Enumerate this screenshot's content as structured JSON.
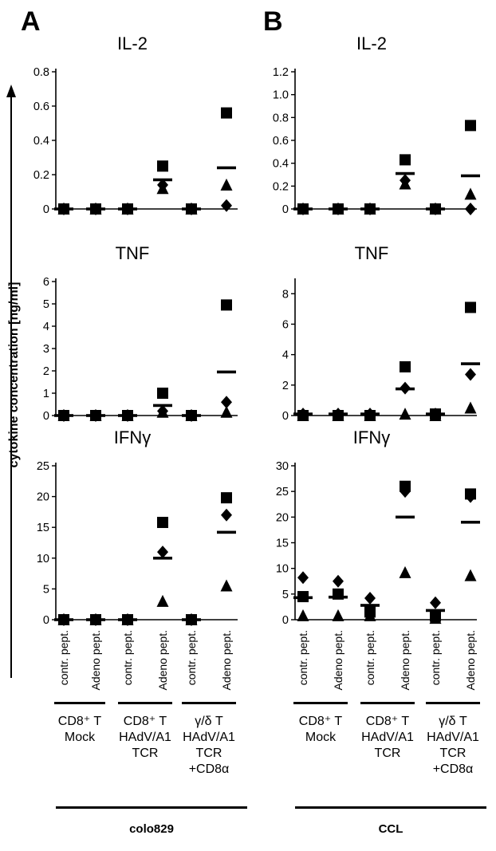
{
  "panels": [
    {
      "letter": "A",
      "cell_line": "colo829"
    },
    {
      "letter": "B",
      "cell_line": "CCL"
    }
  ],
  "y_axis_label": "cytokine concentration [ng/ml]",
  "categories": [
    "contr. pept.",
    "Adeno pept.",
    "contr. pept.",
    "Adeno pept.",
    "contr. pept.",
    "Adeno pept."
  ],
  "groups": [
    {
      "lines": [
        "CD8⁺ T",
        "Mock"
      ]
    },
    {
      "lines": [
        "CD8⁺ T",
        "HAdV/A1",
        "TCR"
      ]
    },
    {
      "lines": [
        "γ/δ T",
        "HAdV/A1",
        "TCR",
        "+CD8α"
      ]
    }
  ],
  "chart_data": [
    {
      "type": "scatter",
      "panel": "A",
      "title": "IL-2",
      "ylim": [
        0,
        0.8
      ],
      "yticks": [
        "0",
        "0.2",
        "0.4",
        "0.6",
        "0.8"
      ],
      "ytick_values": [
        0,
        0.2,
        0.4,
        0.6,
        0.8
      ],
      "series": [
        {
          "name": "",
          "marker": "square",
          "values": [
            0,
            0,
            0,
            0.25,
            0,
            0.56
          ]
        },
        {
          "name": "",
          "marker": "triangle",
          "values": [
            0,
            0,
            0,
            0.12,
            0,
            0.14
          ]
        },
        {
          "name": "",
          "marker": "diamond",
          "values": [
            0,
            0,
            0,
            0.14,
            0,
            0.02
          ]
        }
      ],
      "means": [
        0,
        0,
        0,
        0.17,
        0,
        0.24
      ]
    },
    {
      "type": "scatter",
      "panel": "A",
      "title": "TNF",
      "ylim": [
        0,
        6
      ],
      "yticks": [
        "0",
        "1",
        "2",
        "3",
        "4",
        "5",
        "6"
      ],
      "ytick_values": [
        0,
        1,
        2,
        3,
        4,
        5,
        6
      ],
      "series": [
        {
          "name": "",
          "marker": "square",
          "values": [
            0,
            0,
            0,
            1.0,
            0,
            4.95
          ]
        },
        {
          "name": "",
          "marker": "triangle",
          "values": [
            0,
            0,
            0,
            0.15,
            0,
            0.15
          ]
        },
        {
          "name": "",
          "marker": "diamond",
          "values": [
            0,
            0,
            0,
            0.2,
            0,
            0.6
          ]
        }
      ],
      "means": [
        0,
        0,
        0,
        0.45,
        0,
        1.95
      ]
    },
    {
      "type": "scatter",
      "panel": "A",
      "title": "IFNγ",
      "ylim": [
        0,
        25
      ],
      "yticks": [
        "0",
        "5",
        "10",
        "15",
        "20",
        "25"
      ],
      "ytick_values": [
        0,
        5,
        10,
        15,
        20,
        25
      ],
      "series": [
        {
          "name": "",
          "marker": "square",
          "values": [
            0,
            0,
            0,
            15.8,
            0,
            19.8
          ]
        },
        {
          "name": "",
          "marker": "triangle",
          "values": [
            0,
            0,
            0,
            3.0,
            0,
            5.5
          ]
        },
        {
          "name": "",
          "marker": "diamond",
          "values": [
            0,
            0,
            0,
            11.0,
            0,
            17.0
          ]
        }
      ],
      "means": [
        0,
        0,
        0,
        10.0,
        0,
        14.2
      ]
    },
    {
      "type": "scatter",
      "panel": "B",
      "title": "IL-2",
      "ylim": [
        0,
        1.2
      ],
      "yticks": [
        "0",
        "0.2",
        "0.4",
        "0.6",
        "0.8",
        "1.0",
        "1.2"
      ],
      "ytick_values": [
        0,
        0.2,
        0.4,
        0.6,
        0.8,
        1.0,
        1.2
      ],
      "series": [
        {
          "name": "",
          "marker": "square",
          "values": [
            0,
            0,
            0,
            0.43,
            0,
            0.73
          ]
        },
        {
          "name": "",
          "marker": "triangle",
          "values": [
            0,
            0,
            0,
            0.22,
            0,
            0.13
          ]
        },
        {
          "name": "",
          "marker": "diamond",
          "values": [
            0,
            0,
            0,
            0.25,
            0,
            0.0
          ]
        }
      ],
      "means": [
        0,
        0,
        0,
        0.31,
        0,
        0.29
      ]
    },
    {
      "type": "scatter",
      "panel": "B",
      "title": "TNF",
      "ylim": [
        0,
        8.8
      ],
      "yticks": [
        "0",
        "2",
        "4",
        "6",
        "8"
      ],
      "ytick_values": [
        0,
        2,
        4,
        6,
        8
      ],
      "series": [
        {
          "name": "",
          "marker": "square",
          "values": [
            0,
            0,
            0,
            3.2,
            0.1,
            7.1
          ]
        },
        {
          "name": "",
          "marker": "triangle",
          "values": [
            0,
            0,
            0,
            0.1,
            0,
            0.5
          ]
        },
        {
          "name": "",
          "marker": "diamond",
          "values": [
            0.1,
            0.1,
            0.1,
            1.8,
            0.1,
            2.7
          ]
        }
      ],
      "means": [
        0.1,
        0.1,
        0.1,
        1.75,
        0.1,
        3.4
      ]
    },
    {
      "type": "scatter",
      "panel": "B",
      "title": "IFNγ",
      "ylim": [
        0,
        30
      ],
      "yticks": [
        "0",
        "5",
        "10",
        "15",
        "20",
        "25",
        "30"
      ],
      "ytick_values": [
        0,
        5,
        10,
        15,
        20,
        25,
        30
      ],
      "series": [
        {
          "name": "",
          "marker": "square",
          "values": [
            4.5,
            5.0,
            1.5,
            26.0,
            0.7,
            24.5
          ]
        },
        {
          "name": "",
          "marker": "triangle",
          "values": [
            0.8,
            0.8,
            0.8,
            9.2,
            0.3,
            8.6
          ]
        },
        {
          "name": "",
          "marker": "diamond",
          "values": [
            8.2,
            7.5,
            4.2,
            25.0,
            3.3,
            24.0
          ]
        }
      ],
      "means": [
        4.3,
        4.4,
        2.8,
        20.0,
        1.8,
        19.0
      ]
    }
  ]
}
